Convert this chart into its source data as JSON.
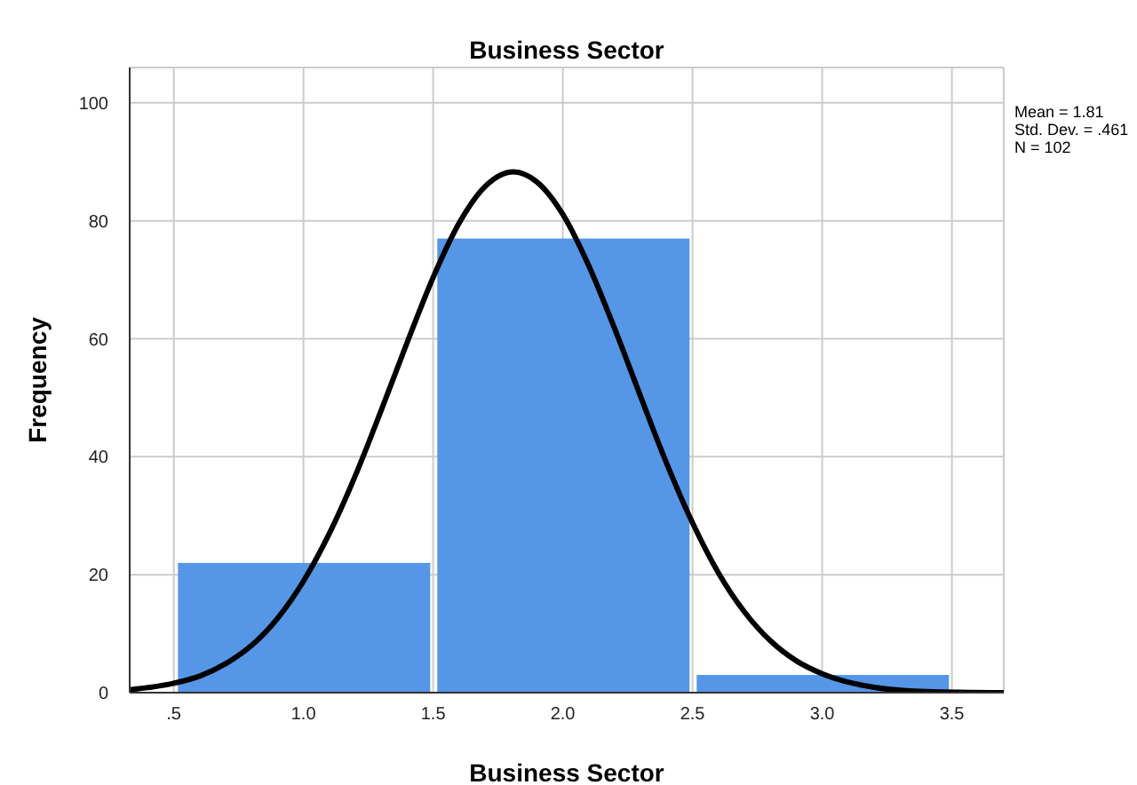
{
  "chart_data": {
    "type": "histogram",
    "title": "Business Sector",
    "xlabel": "Business Sector",
    "ylabel": "Frequency",
    "bins": [
      0.5,
      1.5,
      2.5,
      3.5
    ],
    "values": [
      22,
      77,
      3
    ],
    "color": "#5596e6",
    "series": [
      {
        "type": "line",
        "color": "#000000",
        "x": [
          0.33,
          0.5,
          0.6,
          0.7,
          0.8,
          0.9,
          1.0,
          1.1,
          1.2,
          1.3,
          1.4,
          1.5,
          1.6,
          1.7,
          1.81,
          1.9,
          2.0,
          2.1,
          2.2,
          2.3,
          2.4,
          2.5,
          2.6,
          2.7,
          2.8,
          2.9,
          3.0,
          3.2,
          3.4,
          3.7
        ],
        "values": [
          0.5,
          1.6,
          2.8,
          4.9,
          8.0,
          12.6,
          18.9,
          27.0,
          36.8,
          47.9,
          59.4,
          70.4,
          79.6,
          85.8,
          88.3,
          86.6,
          81.1,
          72.4,
          61.7,
          50.2,
          38.9,
          28.8,
          20.3,
          13.7,
          8.8,
          5.4,
          3.2,
          0.9,
          0.2,
          0.0
        ]
      }
    ],
    "xlim": [
      0.33,
      3.7
    ],
    "xticks": [
      {
        "value": 0.5,
        "label": ".5"
      },
      {
        "value": 1,
        "label": "1.0"
      },
      {
        "value": 1.5,
        "label": "1.5"
      },
      {
        "value": 2,
        "label": "2.0"
      },
      {
        "value": 2.5,
        "label": "2.5"
      },
      {
        "value": 3,
        "label": "3.0"
      },
      {
        "value": 3.5,
        "label": "3.5"
      }
    ],
    "ylim": [
      0,
      106
    ],
    "yticks": [
      0,
      20,
      40,
      60,
      80,
      100
    ],
    "grid": true,
    "annotations": [
      "Mean = 1.81",
      "Std. Dev. = .461",
      "N = 102"
    ]
  }
}
